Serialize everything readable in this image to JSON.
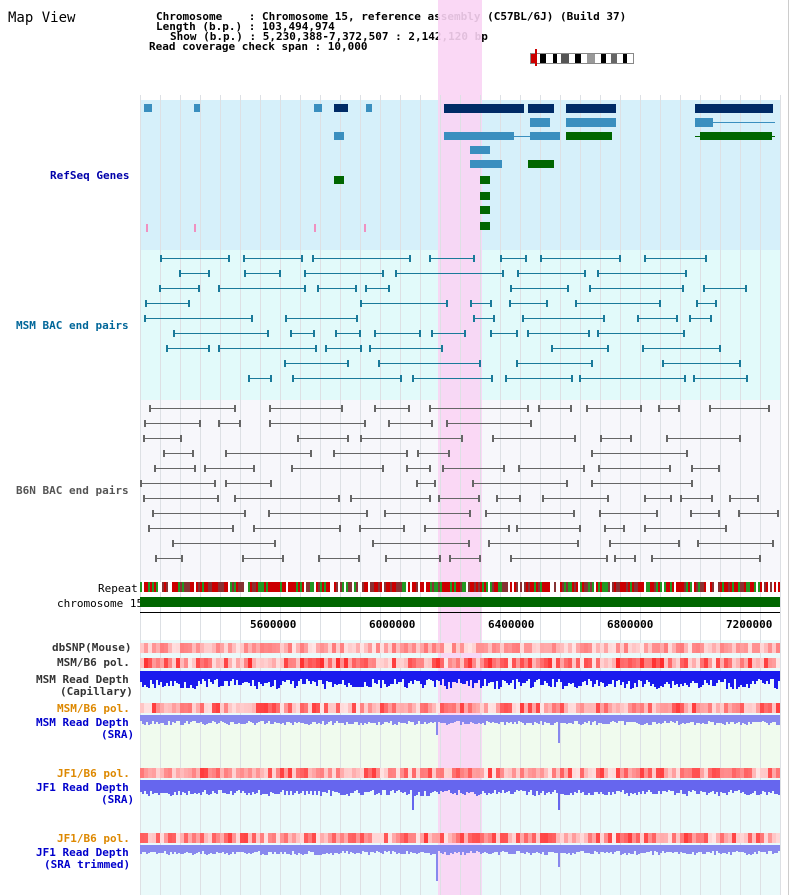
{
  "title": "Map View",
  "header": {
    "line1": "Chromosome    : Chromosome 15, reference assembly (C57BL/6J) (Build 37)",
    "line2": "Length (b.p.) : 103,494,974",
    "line3": "Show (b.p.) : 5,230,388-7,372,507 : 2,142,120 bp",
    "line4": "Read coverage check span : 10,000"
  },
  "tracks": {
    "refseq": "RefSeq Genes",
    "msm_bac": "MSM BAC end pairs",
    "b6n_bac": "B6N BAC end pairs",
    "repeat": "Repeat",
    "chromosome": "chromosome 15",
    "dbsnp": "dbSNP(Mouse)",
    "msmb6": "MSM/B6 pol.",
    "msm_depth_cap1": "MSM Read Depth",
    "msm_depth_cap2": "(Capillary)",
    "msmb6_2": "MSM/B6 pol.",
    "msm_depth_sra1": "MSM Read Depth",
    "msm_depth_sra2": "(SRA)",
    "jf1b6": "JF1/B6 pol.",
    "jf1_depth1": "JF1 Read Depth",
    "jf1_depth2": "(SRA)",
    "jf1b6_2": "JF1/B6 pol.",
    "jf1_trim1": "JF1 Read Depth",
    "jf1_trim2": "(SRA trimmed)"
  },
  "axis": {
    "ticks": [
      "5600000",
      "6000000",
      "6400000",
      "6800000",
      "7200000"
    ]
  },
  "colors": {
    "refseq_label": "#0000aa",
    "msm_label": "#006699",
    "b6n_label": "#555555",
    "orange_label": "#dd8800",
    "blue_label": "#0000cc",
    "highlight": "#f9d4f4"
  }
}
